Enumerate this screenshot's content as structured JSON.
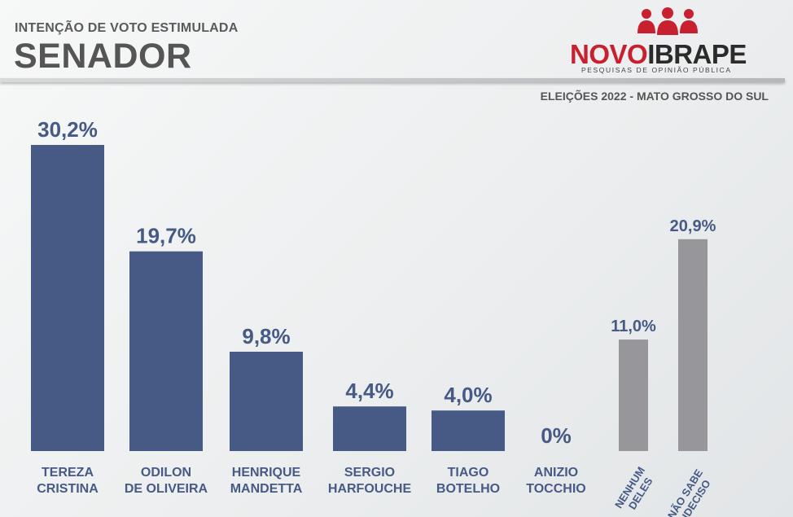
{
  "header": {
    "subtitle": "INTENÇÃO DE VOTO ESTIMULADA",
    "title": "SENADOR",
    "context": "ELEIÇÕES 2022 - MATO GROSSO DO SUL"
  },
  "logo": {
    "name_part1": "NOVO",
    "name_part2": "IBRAPE",
    "tagline": "PESQUISAS DE OPINIÃO PÚBLICA",
    "icon": "people-group-icon",
    "colors": {
      "red": "#c8202f",
      "dark": "#2b2b2b"
    }
  },
  "chart_data": {
    "type": "bar",
    "title": "SENADOR",
    "subtitle": "INTENÇÃO DE VOTO ESTIMULADA",
    "categories": [
      [
        "TEREZA",
        "CRISTINA"
      ],
      [
        "ODILON",
        "DE OLIVEIRA"
      ],
      [
        "HENRIQUE",
        "MANDETTA"
      ],
      [
        "SERGIO",
        "HARFOUCHE"
      ],
      [
        "TIAGO",
        "BOTELHO"
      ],
      [
        "ANIZIO",
        "TOCCHIO"
      ],
      [
        "NENHUM",
        "DELES"
      ],
      [
        "NÃO SABE",
        "INDECISO"
      ]
    ],
    "values": [
      30.2,
      19.7,
      9.8,
      4.4,
      4.0,
      0,
      11.0,
      20.9
    ],
    "value_labels": [
      "30,2%",
      "19,7%",
      "9,8%",
      "4,4%",
      "4,0%",
      "0%",
      "11,0%",
      "20,9%"
    ],
    "groups": [
      "candidate",
      "candidate",
      "candidate",
      "candidate",
      "candidate",
      "candidate",
      "other",
      "other"
    ],
    "colors": {
      "candidate": "#465a85",
      "other": "#97979b",
      "value_text": "#465a85",
      "label_text": "#465a85"
    },
    "xlabel": "",
    "ylabel": "",
    "ylim": [
      0,
      30.2
    ],
    "grid": false
  }
}
